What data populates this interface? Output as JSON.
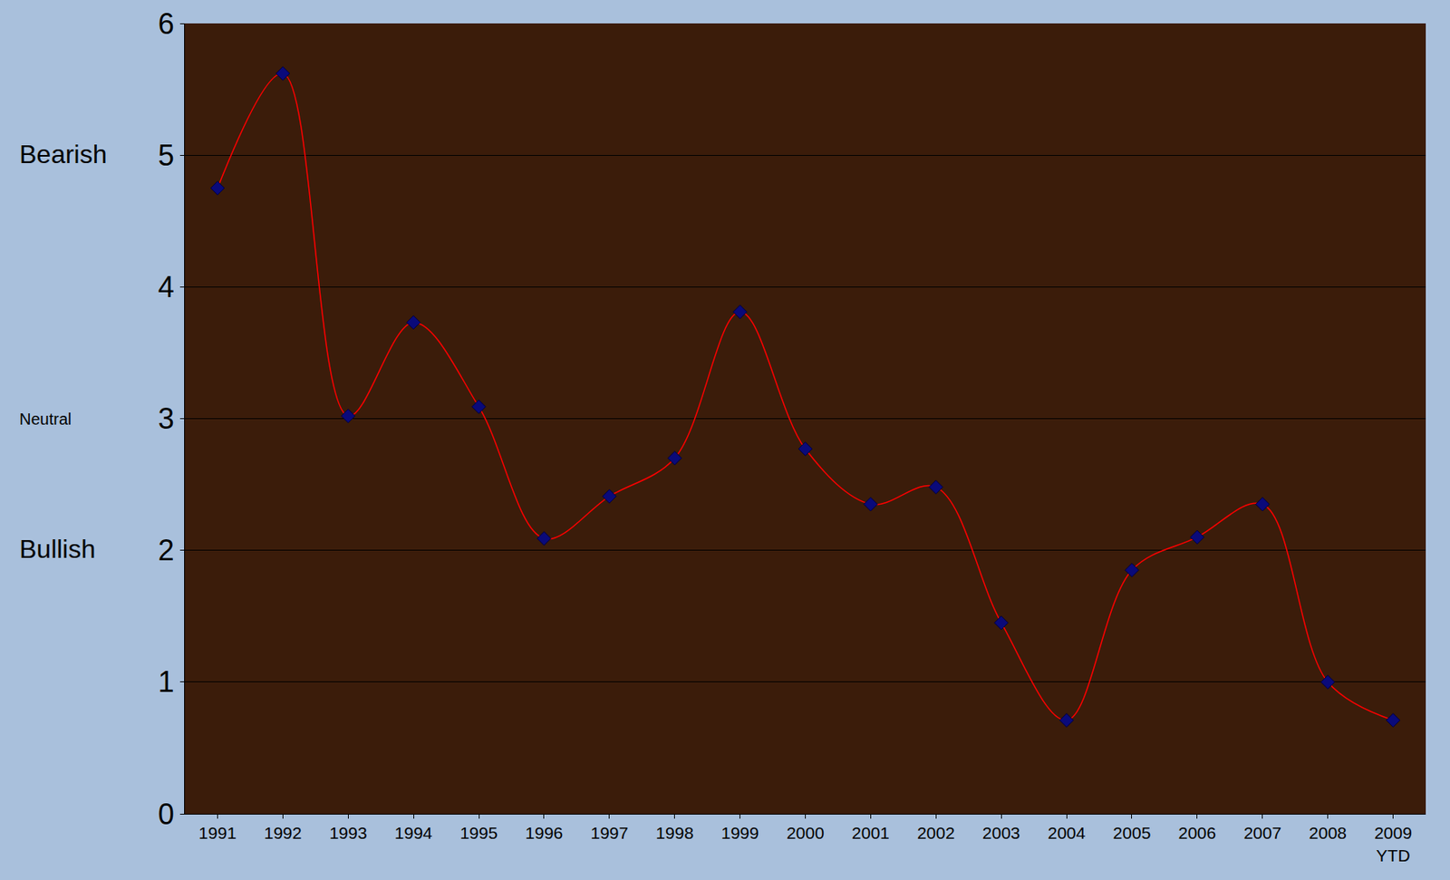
{
  "chart_data": {
    "type": "line",
    "categories": [
      "1991",
      "1992",
      "1993",
      "1994",
      "1995",
      "1996",
      "1997",
      "1998",
      "1999",
      "2000",
      "2001",
      "2002",
      "2003",
      "2004",
      "2005",
      "2006",
      "2007",
      "2008",
      "2009 YTD"
    ],
    "values": [
      4.75,
      5.62,
      3.02,
      3.73,
      3.09,
      2.09,
      2.41,
      2.7,
      3.81,
      2.77,
      2.35,
      2.48,
      1.45,
      0.71,
      1.85,
      2.1,
      2.35,
      1.0,
      0.71
    ],
    "color": "#ff0000",
    "marker": "diamond",
    "line_style": "solid",
    "ylim": [
      0,
      6
    ],
    "yticks": [
      0,
      1,
      2,
      3,
      4,
      5,
      6
    ],
    "grid": true,
    "annotations": [
      "Bearish",
      "Neutral",
      "Bullish"
    ]
  }
}
